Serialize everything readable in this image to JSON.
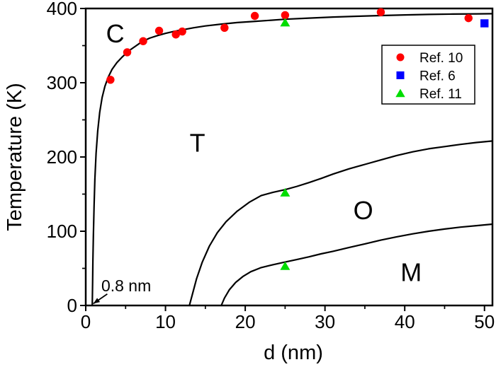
{
  "figure": {
    "background": "#ffffff",
    "frame_color": "#000000",
    "curve_color": "#000000"
  },
  "chart_data": {
    "type": "scatter",
    "title": "",
    "xlabel": "d (nm)",
    "ylabel": "Temperature (K)",
    "xlim": [
      0,
      51
    ],
    "ylim": [
      0,
      400
    ],
    "grid": false,
    "x_major_ticks": [
      0,
      10,
      20,
      30,
      40,
      50
    ],
    "x_minor_ticks": [
      5,
      15,
      25,
      35,
      45
    ],
    "y_major_ticks": [
      0,
      100,
      200,
      300,
      400
    ],
    "y_minor_ticks": [
      50,
      150,
      250,
      350
    ],
    "series": [
      {
        "name": "Ref. 10",
        "marker": "circle",
        "color": "#ff0000",
        "points": [
          [
            3.1,
            304
          ],
          [
            5.2,
            341
          ],
          [
            7.2,
            356
          ],
          [
            9.2,
            370
          ],
          [
            11.3,
            365
          ],
          [
            12.1,
            369
          ],
          [
            17.4,
            374
          ],
          [
            21.2,
            390
          ],
          [
            25,
            391
          ],
          [
            37,
            395
          ],
          [
            48,
            387
          ]
        ]
      },
      {
        "name": "Ref. 6",
        "marker": "square",
        "color": "#0000ff",
        "points": [
          [
            50,
            380
          ]
        ]
      },
      {
        "name": "Ref. 11",
        "marker": "triangle",
        "color": "#00dd00",
        "points": [
          [
            25,
            381
          ],
          [
            25,
            152
          ],
          [
            25,
            53
          ]
        ]
      }
    ],
    "phase_boundaries": [
      {
        "name": "C-T",
        "points": [
          [
            0.82,
            0
          ],
          [
            0.86,
            30
          ],
          [
            0.9,
            60
          ],
          [
            0.96,
            95
          ],
          [
            1.05,
            135
          ],
          [
            1.15,
            170
          ],
          [
            1.3,
            205
          ],
          [
            1.5,
            235
          ],
          [
            1.75,
            260
          ],
          [
            2.05,
            280
          ],
          [
            2.4,
            295
          ],
          [
            2.8,
            307
          ],
          [
            3.3,
            318
          ],
          [
            3.9,
            327
          ],
          [
            4.6,
            335
          ],
          [
            5.4,
            343
          ],
          [
            6.2,
            349
          ],
          [
            7,
            355
          ],
          [
            8,
            360
          ],
          [
            9,
            363.5
          ],
          [
            10,
            366.5
          ],
          [
            11,
            369
          ],
          [
            12,
            371
          ],
          [
            13.5,
            374
          ],
          [
            15,
            376.5
          ],
          [
            17,
            379
          ],
          [
            19,
            381
          ],
          [
            21,
            382.5
          ],
          [
            23,
            384
          ],
          [
            25,
            385.5
          ],
          [
            28,
            387
          ],
          [
            31,
            388.5
          ],
          [
            34,
            389.5
          ],
          [
            37,
            390.5
          ],
          [
            40,
            391.3
          ],
          [
            43,
            392
          ],
          [
            46,
            392.5
          ],
          [
            49,
            392.8
          ],
          [
            51,
            393
          ]
        ]
      },
      {
        "name": "T-O",
        "points": [
          [
            13,
            0
          ],
          [
            13.4,
            16
          ],
          [
            13.9,
            36
          ],
          [
            14.6,
            58
          ],
          [
            15.5,
            80
          ],
          [
            16.5,
            98
          ],
          [
            17.6,
            113
          ],
          [
            19,
            127
          ],
          [
            20.5,
            139
          ],
          [
            22,
            148
          ],
          [
            23.5,
            152.5
          ],
          [
            25,
            156
          ],
          [
            26.5,
            160.5
          ],
          [
            28,
            165.5
          ],
          [
            29.5,
            171
          ],
          [
            31,
            177
          ],
          [
            33,
            184
          ],
          [
            35,
            190
          ],
          [
            37,
            196
          ],
          [
            39,
            202
          ],
          [
            41,
            207
          ],
          [
            43,
            211
          ],
          [
            45,
            214
          ],
          [
            47,
            217
          ],
          [
            49,
            219.5
          ],
          [
            51,
            221.5
          ]
        ]
      },
      {
        "name": "O-M",
        "points": [
          [
            17,
            0
          ],
          [
            17.4,
            10
          ],
          [
            18,
            21
          ],
          [
            18.8,
            31
          ],
          [
            19.7,
            39
          ],
          [
            20.7,
            45.5
          ],
          [
            22,
            51
          ],
          [
            23.5,
            55
          ],
          [
            25,
            58.5
          ],
          [
            26.5,
            62
          ],
          [
            28,
            65.5
          ],
          [
            29.5,
            69.5
          ],
          [
            31,
            73
          ],
          [
            33,
            78
          ],
          [
            35,
            83
          ],
          [
            37,
            88
          ],
          [
            39,
            92.5
          ],
          [
            41,
            96.5
          ],
          [
            43,
            100
          ],
          [
            45,
            103
          ],
          [
            47,
            105.5
          ],
          [
            49,
            107.5
          ],
          [
            51,
            109.5
          ]
        ]
      }
    ],
    "phase_labels": [
      {
        "text": "C",
        "x": 3.7,
        "y": 366
      },
      {
        "text": "T",
        "x": 14,
        "y": 219
      },
      {
        "text": "O",
        "x": 34.8,
        "y": 128
      },
      {
        "text": "M",
        "x": 40.8,
        "y": 45
      }
    ],
    "annotation": {
      "text": "0.8 nm",
      "text_x": 1.95,
      "text_y": 19,
      "arrow_from": [
        2.7,
        15.5
      ],
      "arrow_to": [
        0.95,
        2.5
      ]
    },
    "legend": {
      "position": "top-right",
      "entries": [
        "Ref. 10",
        "Ref. 6",
        "Ref. 11"
      ]
    }
  }
}
